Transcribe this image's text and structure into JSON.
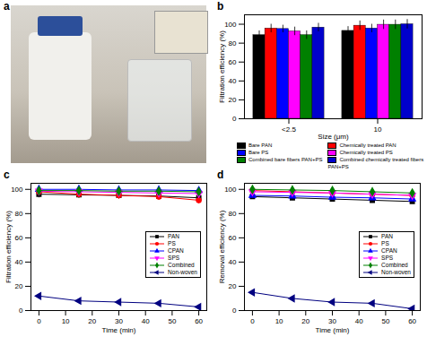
{
  "chart_data": [
    {
      "type": "image",
      "title": "a"
    },
    {
      "type": "bar",
      "title": "b",
      "x_label": "Size (μm)",
      "y_label": "Filtration efficiency (%)",
      "categories": [
        "<2.5",
        "10"
      ],
      "ylim": [
        0,
        110
      ],
      "yticks": [
        0,
        20,
        40,
        60,
        80,
        100
      ],
      "legend": "bottom",
      "series": [
        {
          "name": "Bare PAN",
          "color": "#000000",
          "values": [
            88.5,
            93
          ],
          "errors": [
            4.5,
            4.5
          ]
        },
        {
          "name": "Chemically treated PAN",
          "color": "#ff0000",
          "values": [
            95.5,
            98.5
          ],
          "errors": [
            4.5,
            5
          ]
        },
        {
          "name": "Bare PS",
          "color": "#0000ff",
          "values": [
            95,
            95.5
          ],
          "errors": [
            4,
            4.5
          ]
        },
        {
          "name": "Chemically treated PS",
          "color": "#ff00ff",
          "values": [
            92.5,
            99.5
          ],
          "errors": [
            4.5,
            5
          ]
        },
        {
          "name": "Combined bare fibers PAN+PS",
          "color": "#008000",
          "values": [
            88.5,
            99.5
          ],
          "errors": [
            4.5,
            5
          ]
        },
        {
          "name": "Combined chemically treated fibers PAN+PS",
          "color": "#0000cc",
          "values": [
            96.5,
            100
          ],
          "errors": [
            4.5,
            5
          ]
        }
      ]
    },
    {
      "type": "line",
      "title": "c",
      "x_label": "Time (min)",
      "y_label": "Filtration efficiency (%)",
      "x": [
        0,
        15,
        30,
        45,
        60
      ],
      "xlim": [
        -3,
        63
      ],
      "xticks": [
        0,
        10,
        20,
        30,
        40,
        50,
        60
      ],
      "ylim": [
        0,
        105
      ],
      "yticks": [
        0,
        20,
        40,
        60,
        80,
        100
      ],
      "legend": "right",
      "series": [
        {
          "name": "PAN",
          "color": "#000000",
          "marker": "square",
          "values": [
            96,
            95.5,
            95,
            94.5,
            93
          ],
          "errors": [
            3,
            3,
            3,
            3,
            3
          ]
        },
        {
          "name": "PS",
          "color": "#ff0000",
          "marker": "circle",
          "values": [
            98,
            96,
            95,
            94,
            91
          ],
          "errors": [
            3,
            3,
            3,
            3,
            3
          ]
        },
        {
          "name": "CPAN",
          "color": "#0000ff",
          "marker": "triangle-up",
          "values": [
            100,
            100,
            99.5,
            99.5,
            99
          ],
          "errors": [
            3,
            3,
            3,
            3,
            3
          ]
        },
        {
          "name": "SPS",
          "color": "#ff00ff",
          "marker": "triangle-down",
          "values": [
            98.5,
            98,
            97.5,
            97,
            96.5
          ],
          "errors": [
            3,
            3,
            3,
            3,
            3
          ]
        },
        {
          "name": "Combined",
          "color": "#008000",
          "marker": "diamond",
          "values": [
            99,
            99,
            98.5,
            98.5,
            98
          ],
          "errors": [
            3,
            3,
            3,
            3,
            3
          ]
        },
        {
          "name": "Non-woven",
          "color": "#000080",
          "marker": "triangle-left",
          "values": [
            12,
            8,
            7,
            6,
            3
          ],
          "errors": [
            1.5,
            1.5,
            1.5,
            1.5,
            1.5
          ]
        }
      ]
    },
    {
      "type": "line",
      "title": "d",
      "x_label": "Time (min)",
      "y_label": "Removal efficiency (%)",
      "x": [
        0,
        15,
        30,
        45,
        60
      ],
      "xlim": [
        -3,
        63
      ],
      "xticks": [
        0,
        10,
        20,
        30,
        40,
        50,
        60
      ],
      "ylim": [
        0,
        105
      ],
      "yticks": [
        0,
        20,
        40,
        60,
        80,
        100
      ],
      "legend": "right",
      "series": [
        {
          "name": "PAN",
          "color": "#000000",
          "marker": "square",
          "values": [
            94,
            93,
            92,
            91,
            90
          ],
          "errors": [
            2,
            2,
            2,
            2,
            2
          ]
        },
        {
          "name": "PS",
          "color": "#ff0000",
          "marker": "circle",
          "values": [
            99,
            98,
            97,
            96,
            95
          ],
          "errors": [
            2,
            2,
            2,
            2,
            2
          ]
        },
        {
          "name": "CPAN",
          "color": "#0000ff",
          "marker": "triangle-up",
          "values": [
            95,
            94.5,
            93.5,
            93,
            92
          ],
          "errors": [
            2,
            2,
            2,
            2,
            2
          ]
        },
        {
          "name": "SPS",
          "color": "#ff00ff",
          "marker": "triangle-down",
          "values": [
            98,
            97.5,
            97,
            96,
            95
          ],
          "errors": [
            2,
            2,
            2,
            2,
            2
          ]
        },
        {
          "name": "Combined",
          "color": "#008000",
          "marker": "diamond",
          "values": [
            100,
            99.5,
            99,
            98,
            97
          ],
          "errors": [
            2,
            2,
            2,
            2,
            2
          ]
        },
        {
          "name": "Non-woven",
          "color": "#000080",
          "marker": "triangle-left",
          "values": [
            15,
            10,
            7,
            6,
            1.5
          ],
          "errors": [
            1.5,
            1.5,
            1.5,
            1.5,
            1.5
          ]
        }
      ]
    }
  ]
}
